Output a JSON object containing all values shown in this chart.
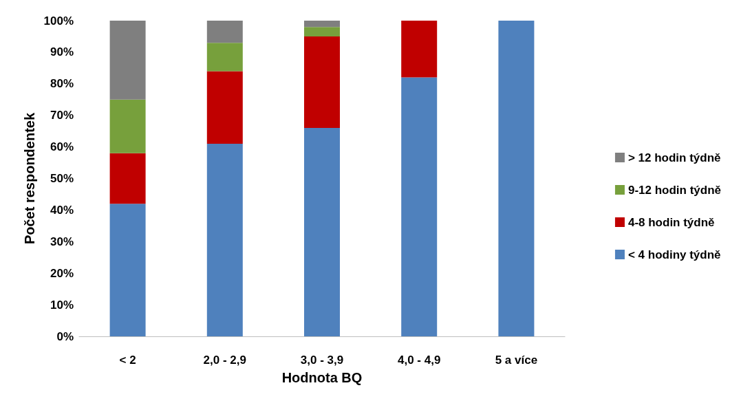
{
  "chart_data": {
    "type": "bar",
    "stacked": true,
    "xlabel": "Hodnota BQ",
    "ylabel": "Počet respondentek",
    "categories": [
      "< 2",
      "2,0 - 2,9",
      "3,0 - 3,9",
      "4,0 - 4,9",
      "5 a více"
    ],
    "series": [
      {
        "name": "< 4 hodiny týdně",
        "color": "#4f81bd",
        "values": [
          42,
          61,
          66,
          82,
          100
        ]
      },
      {
        "name": "4-8 hodin týdně",
        "color": "#c00000",
        "values": [
          16,
          23,
          29,
          18,
          0
        ]
      },
      {
        "name": "9-12 hodin týdně",
        "color": "#77a03c",
        "values": [
          17,
          9,
          3,
          0,
          0
        ]
      },
      {
        "name": "> 12 hodin týdně",
        "color": "#7f7f7f",
        "values": [
          25,
          7,
          2,
          0,
          0
        ]
      }
    ],
    "ylim": [
      0,
      100
    ],
    "yticks": [
      {
        "value": 0,
        "label": "0%"
      },
      {
        "value": 10,
        "label": "10%"
      },
      {
        "value": 20,
        "label": "20%"
      },
      {
        "value": 30,
        "label": "30%"
      },
      {
        "value": 40,
        "label": "40%"
      },
      {
        "value": 50,
        "label": "50%"
      },
      {
        "value": 60,
        "label": "60%"
      },
      {
        "value": 70,
        "label": "70%"
      },
      {
        "value": 80,
        "label": "80%"
      },
      {
        "value": 90,
        "label": "90%"
      },
      {
        "value": 100,
        "label": "100%"
      }
    ],
    "grid": false,
    "legend": "right"
  }
}
